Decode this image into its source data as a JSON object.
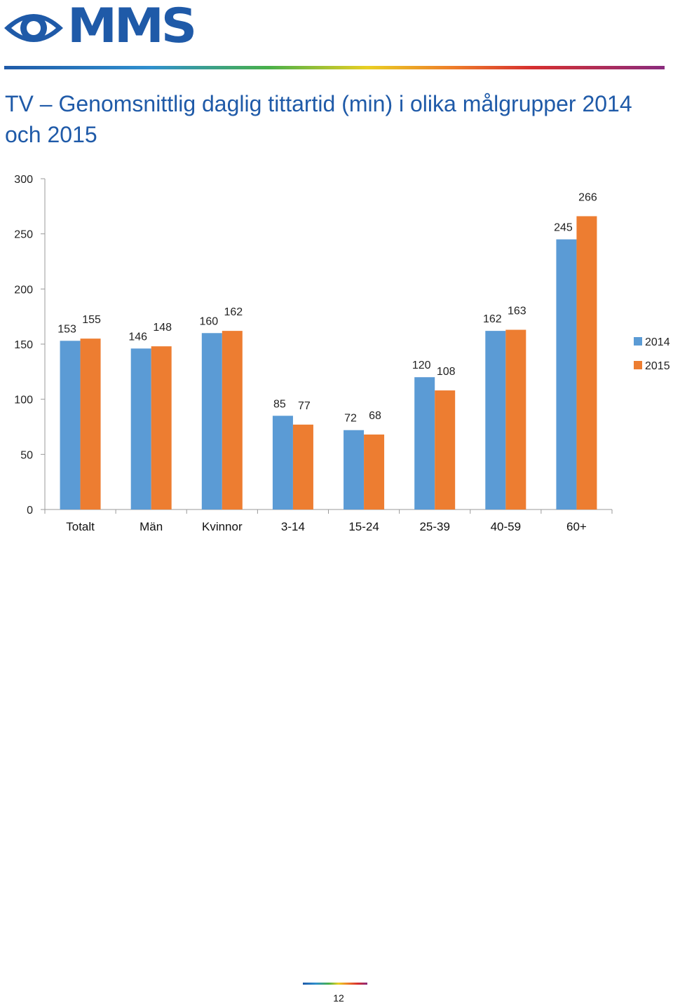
{
  "header": {
    "logo_text": "MMS",
    "title": "TV – Genomsnittlig daglig tittartid (min) i olika målgrupper 2014 och 2015"
  },
  "footer": {
    "page_number": "12"
  },
  "chart_data": {
    "type": "bar",
    "title": "",
    "xlabel": "",
    "ylabel": "",
    "ylim": [
      0,
      300
    ],
    "yticks": [
      0,
      50,
      100,
      150,
      200,
      250,
      300
    ],
    "grid": false,
    "legend_position": "right",
    "categories": [
      "Totalt",
      "Män",
      "Kvinnor",
      "3-14",
      "15-24",
      "25-39",
      "40-59",
      "60+"
    ],
    "series": [
      {
        "name": "2014",
        "color": "#5b9bd5",
        "values": [
          153,
          146,
          160,
          85,
          72,
          120,
          162,
          245
        ]
      },
      {
        "name": "2015",
        "color": "#ed7d31",
        "values": [
          155,
          148,
          162,
          77,
          68,
          108,
          163,
          266
        ]
      }
    ]
  }
}
